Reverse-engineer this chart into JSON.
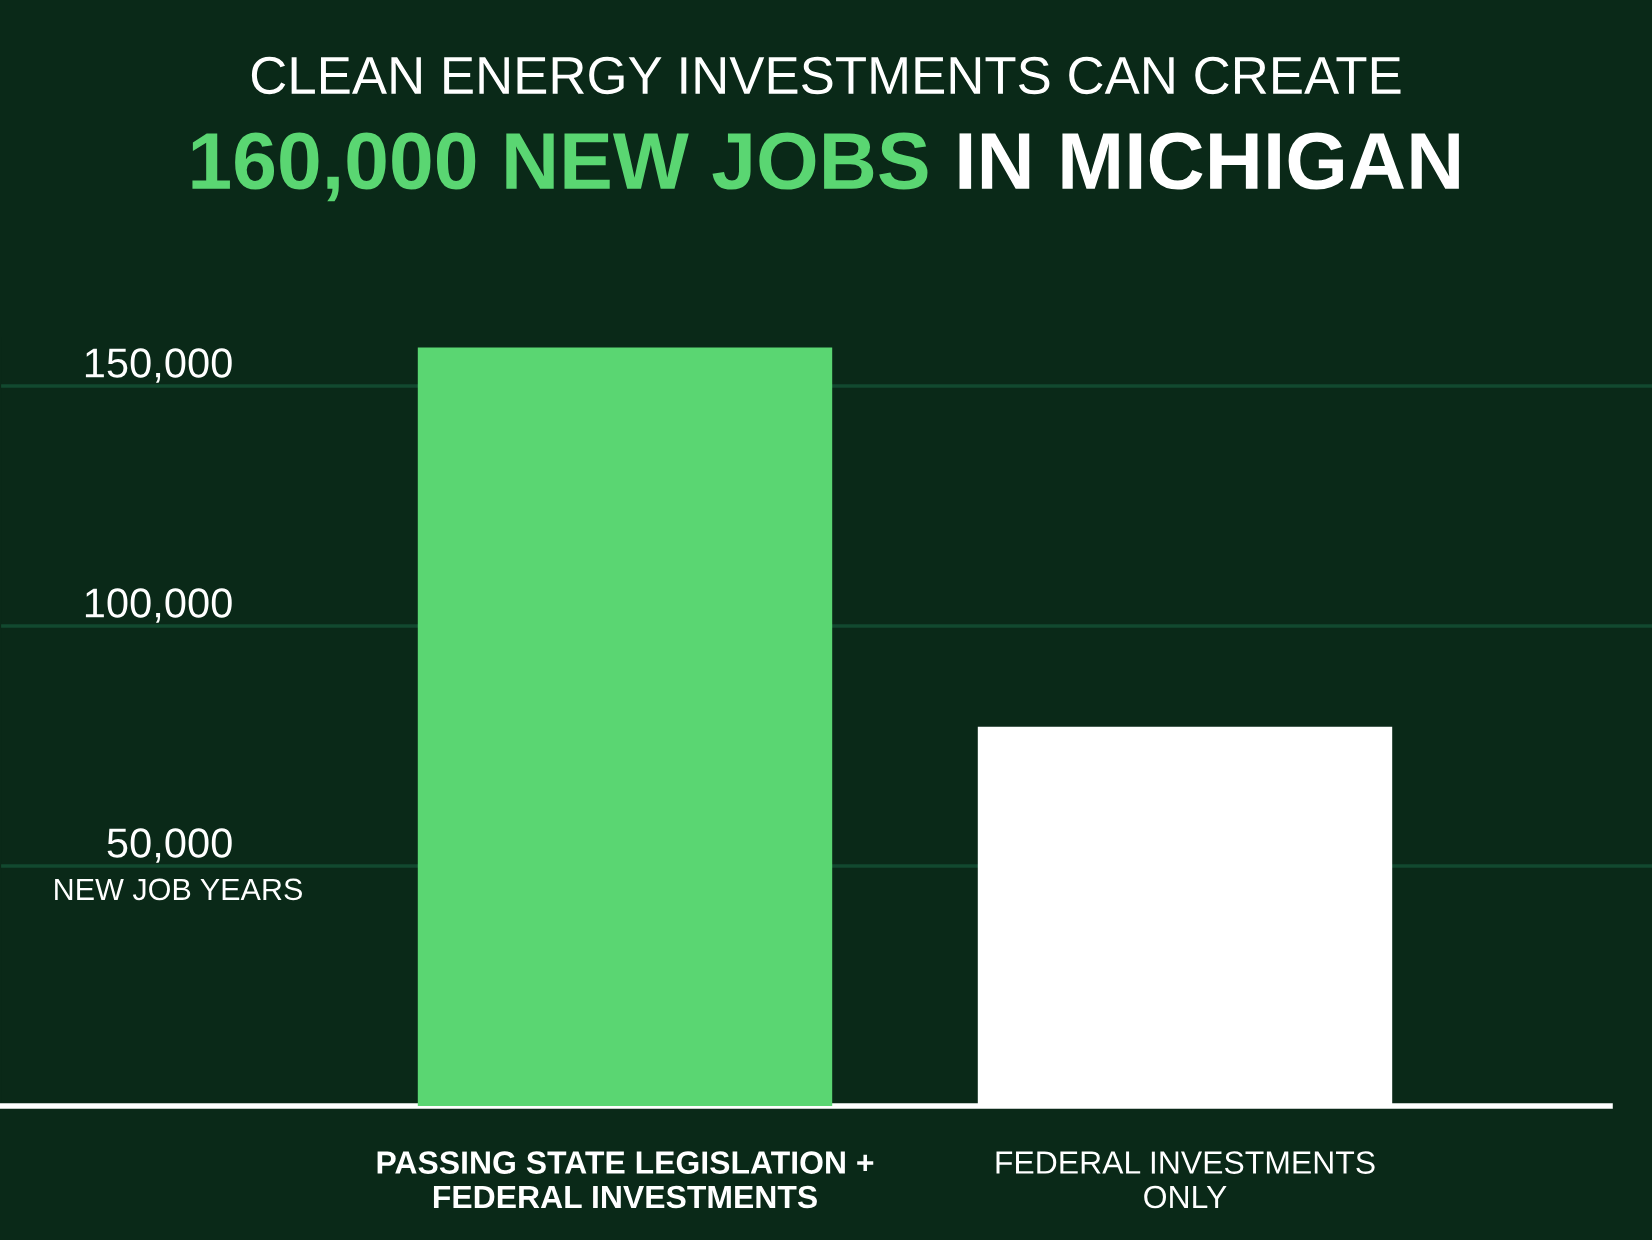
{
  "chart_data": {
    "type": "bar",
    "title": "CLEAN ENERGY INVESTMENTS CAN CREATE",
    "subtitle": "160,000 NEW JOBS IN MICHIGAN",
    "ylabel": "NEW JOB YEARS",
    "categories": [
      "PASSING STATE LEGISLATION +\nFEDERAL INVESTMENTS",
      "FEDERAL INVESTMENTS\nONLY"
    ],
    "values": [
      158000,
      79000
    ],
    "colors": [
      "#5ad672",
      "#ffffff"
    ],
    "ylim": [
      0,
      160000
    ],
    "yticks": [
      {
        "value": 50000,
        "label": "50,000"
      },
      {
        "value": 100000,
        "label": "100,000"
      },
      {
        "value": 150000,
        "label": "150,000"
      }
    ],
    "grid": "y"
  }
}
